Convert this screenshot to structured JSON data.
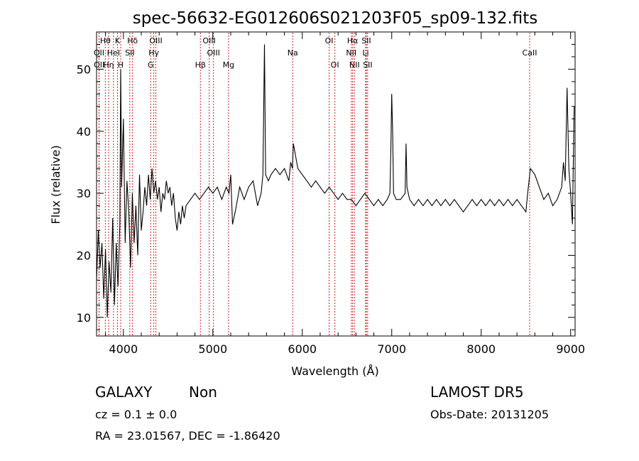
{
  "chart_data": {
    "type": "line",
    "title": "spec-56632-EG012606S021203F05_sp09-132.fits",
    "xlabel": "Wavelength (Å)",
    "ylabel": "Flux (relative)",
    "xlim": [
      3700,
      9050
    ],
    "ylim": [
      7,
      56
    ],
    "xticks": [
      4000,
      5000,
      6000,
      7000,
      8000,
      9000
    ],
    "yticks": [
      10,
      20,
      30,
      40,
      50
    ],
    "grid": false,
    "line_color": "#000000",
    "marker_color": "#cc2222",
    "spectrum": {
      "x": [
        3700,
        3720,
        3740,
        3760,
        3780,
        3800,
        3820,
        3840,
        3860,
        3880,
        3900,
        3920,
        3940,
        3960,
        3970,
        3980,
        4000,
        4020,
        4040,
        4060,
        4080,
        4100,
        4120,
        4140,
        4160,
        4180,
        4200,
        4220,
        4240,
        4260,
        4280,
        4300,
        4320,
        4340,
        4360,
        4380,
        4400,
        4420,
        4440,
        4460,
        4480,
        4500,
        4520,
        4540,
        4560,
        4580,
        4600,
        4620,
        4640,
        4660,
        4680,
        4700,
        4750,
        4800,
        4850,
        4900,
        4950,
        5000,
        5050,
        5100,
        5150,
        5180,
        5200,
        5220,
        5250,
        5300,
        5350,
        5400,
        5450,
        5500,
        5540,
        5560,
        5577,
        5590,
        5620,
        5650,
        5700,
        5750,
        5800,
        5850,
        5870,
        5890,
        5900,
        5950,
        6000,
        6050,
        6100,
        6150,
        6200,
        6250,
        6300,
        6350,
        6400,
        6450,
        6500,
        6550,
        6600,
        6650,
        6700,
        6750,
        6800,
        6850,
        6900,
        6950,
        6980,
        6990,
        7000,
        7010,
        7020,
        7050,
        7100,
        7150,
        7160,
        7170,
        7200,
        7250,
        7300,
        7350,
        7400,
        7450,
        7500,
        7550,
        7600,
        7650,
        7700,
        7750,
        7800,
        7850,
        7900,
        7950,
        8000,
        8050,
        8100,
        8150,
        8200,
        8250,
        8300,
        8350,
        8400,
        8450,
        8500,
        8520,
        8550,
        8600,
        8650,
        8700,
        8750,
        8800,
        8850,
        8900,
        8920,
        8940,
        8960,
        8980,
        9000,
        9020,
        9040
      ],
      "y": [
        16,
        24,
        18,
        22,
        13,
        21,
        10,
        19,
        14,
        26,
        12,
        22,
        15,
        25,
        50,
        31,
        42,
        22,
        32,
        27,
        18,
        30,
        22,
        28,
        20,
        33,
        24,
        27,
        31,
        28,
        33,
        29,
        34,
        30,
        32,
        29,
        31,
        27,
        30,
        29,
        32,
        30,
        31,
        28,
        30,
        26,
        24,
        27,
        25,
        28,
        26,
        28,
        29,
        30,
        29,
        30,
        31,
        30,
        31,
        29,
        31,
        30,
        33,
        25,
        27,
        31,
        29,
        31,
        32,
        28,
        30,
        33,
        54,
        33,
        32,
        33,
        34,
        33,
        34,
        32,
        35,
        34,
        38,
        34,
        33,
        32,
        31,
        32,
        31,
        30,
        31,
        30,
        29,
        30,
        29,
        29,
        28,
        29,
        30,
        29,
        28,
        29,
        28,
        29,
        30,
        37,
        46,
        40,
        30,
        29,
        29,
        30,
        38,
        31,
        29,
        28,
        29,
        28,
        29,
        28,
        29,
        28,
        29,
        28,
        29,
        28,
        27,
        28,
        29,
        28,
        29,
        28,
        29,
        28,
        29,
        28,
        29,
        28,
        29,
        28,
        27,
        30,
        34,
        33,
        31,
        29,
        30,
        28,
        29,
        31,
        35,
        32,
        47,
        34,
        30,
        25,
        44
      ]
    },
    "line_markers": [
      {
        "label": "OII",
        "x": 3727,
        "row": 2
      },
      {
        "label": "OII",
        "x": 3729,
        "row": 3
      },
      {
        "label": "Hθ",
        "x": 3798,
        "row": 1
      },
      {
        "label": "Hη",
        "x": 3835,
        "row": 3
      },
      {
        "label": "HeI",
        "x": 3889,
        "row": 2
      },
      {
        "label": "K",
        "x": 3934,
        "row": 1
      },
      {
        "label": "H",
        "x": 3969,
        "row": 3
      },
      {
        "label": "Hδ",
        "x": 4102,
        "row": 1
      },
      {
        "label": "SII",
        "x": 4072,
        "row": 2
      },
      {
        "label": "OIII",
        "x": 4363,
        "row": 1
      },
      {
        "label": "Hγ",
        "x": 4340,
        "row": 2
      },
      {
        "label": "G",
        "x": 4305,
        "row": 3
      },
      {
        "label": "OIII",
        "x": 4959,
        "row": 1
      },
      {
        "label": "OIII",
        "x": 5007,
        "row": 2
      },
      {
        "label": "Hβ",
        "x": 4861,
        "row": 3
      },
      {
        "label": "Mg",
        "x": 5175,
        "row": 3
      },
      {
        "label": "Na",
        "x": 5893,
        "row": 2
      },
      {
        "label": "OI",
        "x": 6300,
        "row": 1
      },
      {
        "label": "OI",
        "x": 6364,
        "row": 3
      },
      {
        "label": "Hα",
        "x": 6563,
        "row": 1
      },
      {
        "label": "NII",
        "x": 6548,
        "row": 2
      },
      {
        "label": "NII",
        "x": 6583,
        "row": 3
      },
      {
        "label": "SII",
        "x": 6716,
        "row": 1
      },
      {
        "label": "Li",
        "x": 6708,
        "row": 2
      },
      {
        "label": "SII",
        "x": 6731,
        "row": 3
      },
      {
        "label": "CaII",
        "x": 8542,
        "row": 2
      }
    ]
  },
  "info": {
    "object_class": "GALAXY",
    "subclass": "Non",
    "survey": "LAMOST DR5",
    "cz_line": "cz = 0.1 ± 0.0",
    "obs_date": "Obs-Date: 20131205",
    "coords": "RA =  23.01567, DEC =  -1.86420"
  }
}
